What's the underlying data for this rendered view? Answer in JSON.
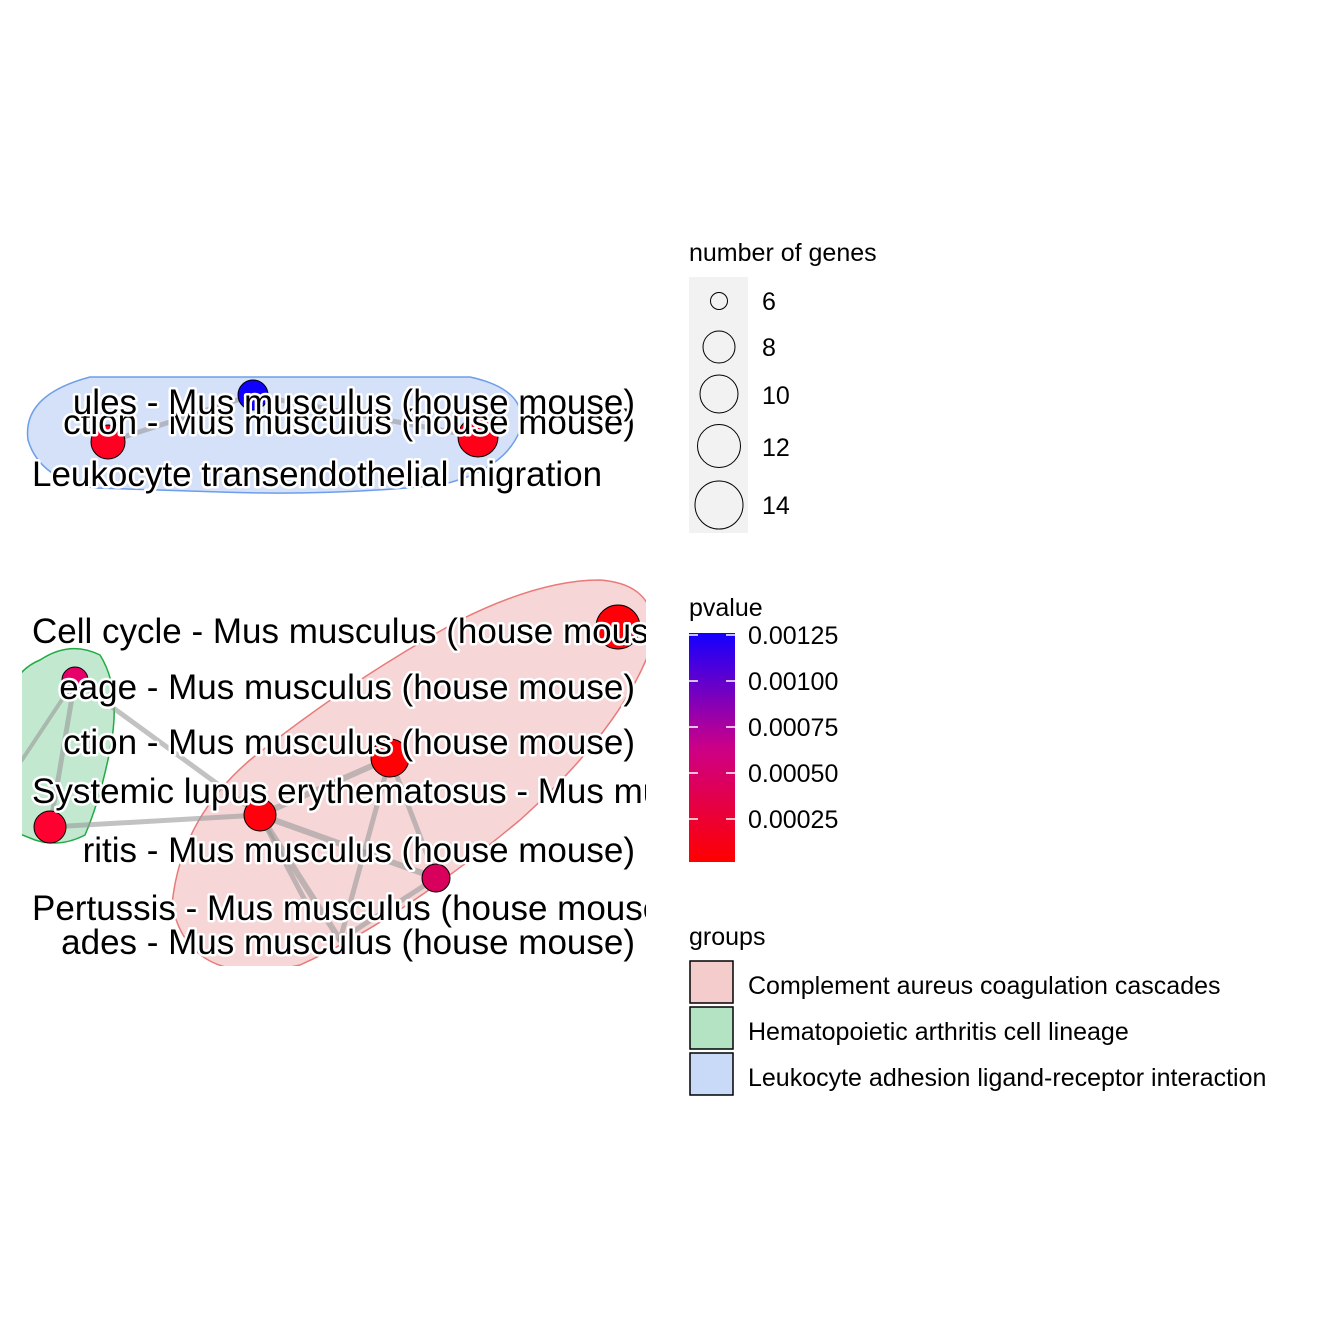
{
  "network": {
    "nodes": [
      {
        "id": "n1",
        "label": "ules - Mus musculus (house mouse)"
      },
      {
        "id": "n2",
        "label": "ction - Mus musculus (house mouse)"
      },
      {
        "id": "n3",
        "label": "Leukocyte transendothelial migration"
      },
      {
        "id": "n4",
        "label": "Cell cycle - Mus musculus (house mouse)"
      },
      {
        "id": "n5",
        "label": "eage - Mus musculus (house mouse)"
      },
      {
        "id": "n6",
        "label": "ction - Mus musculus (house mouse)"
      },
      {
        "id": "n7",
        "label": "Systemic lupus erythematosus - Mus musculus (house mouse)"
      },
      {
        "id": "n8",
        "label": "ritis - Mus musculus (house mouse)"
      },
      {
        "id": "n9",
        "label": "Pertussis - Mus musculus (house mouse)"
      },
      {
        "id": "n10",
        "label": "ades - Mus musculus (house mouse)"
      }
    ],
    "groups": [
      {
        "name": "Complement aureus coagulation cascades",
        "color": "#f4cccc"
      },
      {
        "name": "Hematopoietic arthritis cell lineage",
        "color": "#b3e3c3"
      },
      {
        "name": "Leukocyte adhesion ligand-receptor interaction",
        "color": "#c9daf8"
      }
    ]
  },
  "legend": {
    "size_title": "number of genes",
    "size_levels": [
      "6",
      "8",
      "10",
      "12",
      "14"
    ],
    "color_title": "pvalue",
    "color_ticks": [
      "0.00125",
      "0.00100",
      "0.00075",
      "0.00050",
      "0.00025"
    ],
    "color_low": "#ff0000",
    "color_high": "#0000ff",
    "groups_title": "groups"
  }
}
